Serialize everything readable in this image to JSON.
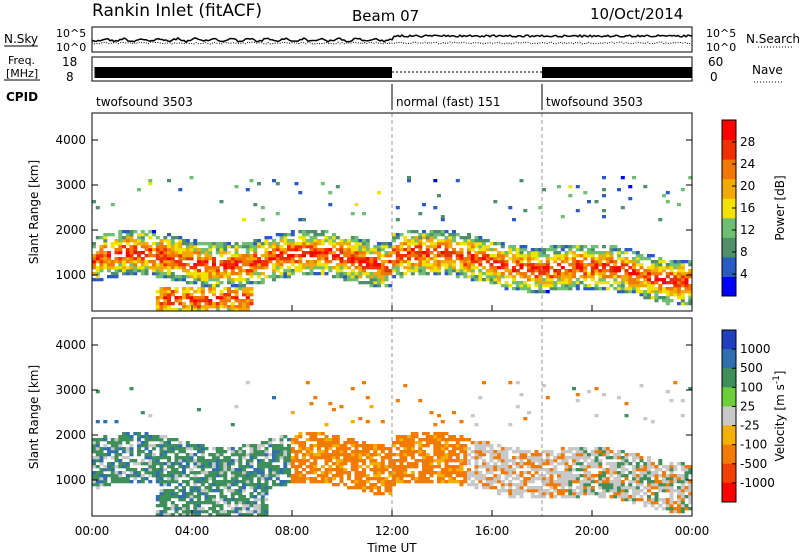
{
  "header": {
    "title": "Rankin Inlet (fitACF)",
    "beam": "Beam 07",
    "date": "10/Oct/2014"
  },
  "top_panels": {
    "nsky_label": "N.Sky",
    "nsearch_label": "N.Search",
    "freq_label_1": "Freq.",
    "freq_label_2": "[MHz]",
    "nave_label": "Nave",
    "cpid_label": "CPID",
    "nsky_ticks": [
      "10^5",
      "10^0"
    ],
    "nsearch_ticks": [
      "10^5",
      "10^0"
    ],
    "freq_ticks": [
      "18",
      "8"
    ],
    "nave_ticks": [
      "60",
      "0"
    ],
    "cpid_segments": [
      {
        "start": 0,
        "end": 12,
        "label": "twofsound 3503"
      },
      {
        "start": 12,
        "end": 18,
        "label": "normal (fast) 151"
      },
      {
        "start": 18,
        "end": 24,
        "label": "twofsound 3503"
      }
    ]
  },
  "chart_data": [
    {
      "type": "heatmap",
      "name": "power",
      "ylabel": "Slant Range [km]",
      "ylim": [
        200,
        4600
      ],
      "yticks": [
        "1000",
        "2000",
        "3000",
        "4000"
      ],
      "ytick_values": [
        1000,
        2000,
        3000,
        4000
      ],
      "xlim": [
        0,
        24
      ],
      "colorbar": {
        "label": "Power [dB]",
        "ticks": [
          "4",
          "8",
          "12",
          "16",
          "20",
          "24",
          "28"
        ],
        "tick_values": [
          4,
          8,
          12,
          16,
          20,
          24,
          28
        ],
        "range": [
          0,
          32
        ],
        "colors": [
          "#0000ff",
          "#2a5bc4",
          "#4f8f6a",
          "#6fbf73",
          "#f2e200",
          "#f2a900",
          "#f07800",
          "#f03000",
          "#ff0000"
        ]
      },
      "features": [
        {
          "t0": 0.3,
          "t1": 12,
          "r0": 900,
          "r1": 1900,
          "level": "high"
        },
        {
          "t0": 3,
          "t1": 6,
          "r0": 300,
          "r1": 700,
          "level": "high"
        },
        {
          "t0": 12,
          "t1": 24,
          "r0": 500,
          "r1": 2300,
          "level": "medium"
        }
      ]
    },
    {
      "type": "heatmap",
      "name": "velocity",
      "ylabel": "Slant Range [km]",
      "xlabel": "Time UT",
      "ylim": [
        200,
        4600
      ],
      "yticks": [
        "1000",
        "2000",
        "3000",
        "4000"
      ],
      "ytick_values": [
        1000,
        2000,
        3000,
        4000
      ],
      "xlim": [
        0,
        24
      ],
      "xticks": [
        "00:00",
        "04:00",
        "08:00",
        "12:00",
        "16:00",
        "20:00",
        "00:00"
      ],
      "xtick_values": [
        0,
        4,
        8,
        12,
        16,
        20,
        24
      ],
      "colorbar": {
        "label": "Velocity [m s",
        "label_sup": "-1",
        "label_close": "]",
        "ticks": [
          "1000",
          "500",
          "100",
          "25",
          "-25",
          "-100",
          "-500",
          "-1000"
        ],
        "colors": [
          "#1f3fbf",
          "#2f6fb0",
          "#3f8f5a",
          "#6ccf3a",
          "#c8c8c8",
          "#f4b000",
          "#f27a00",
          "#f24000",
          "#ff0000"
        ]
      }
    }
  ]
}
